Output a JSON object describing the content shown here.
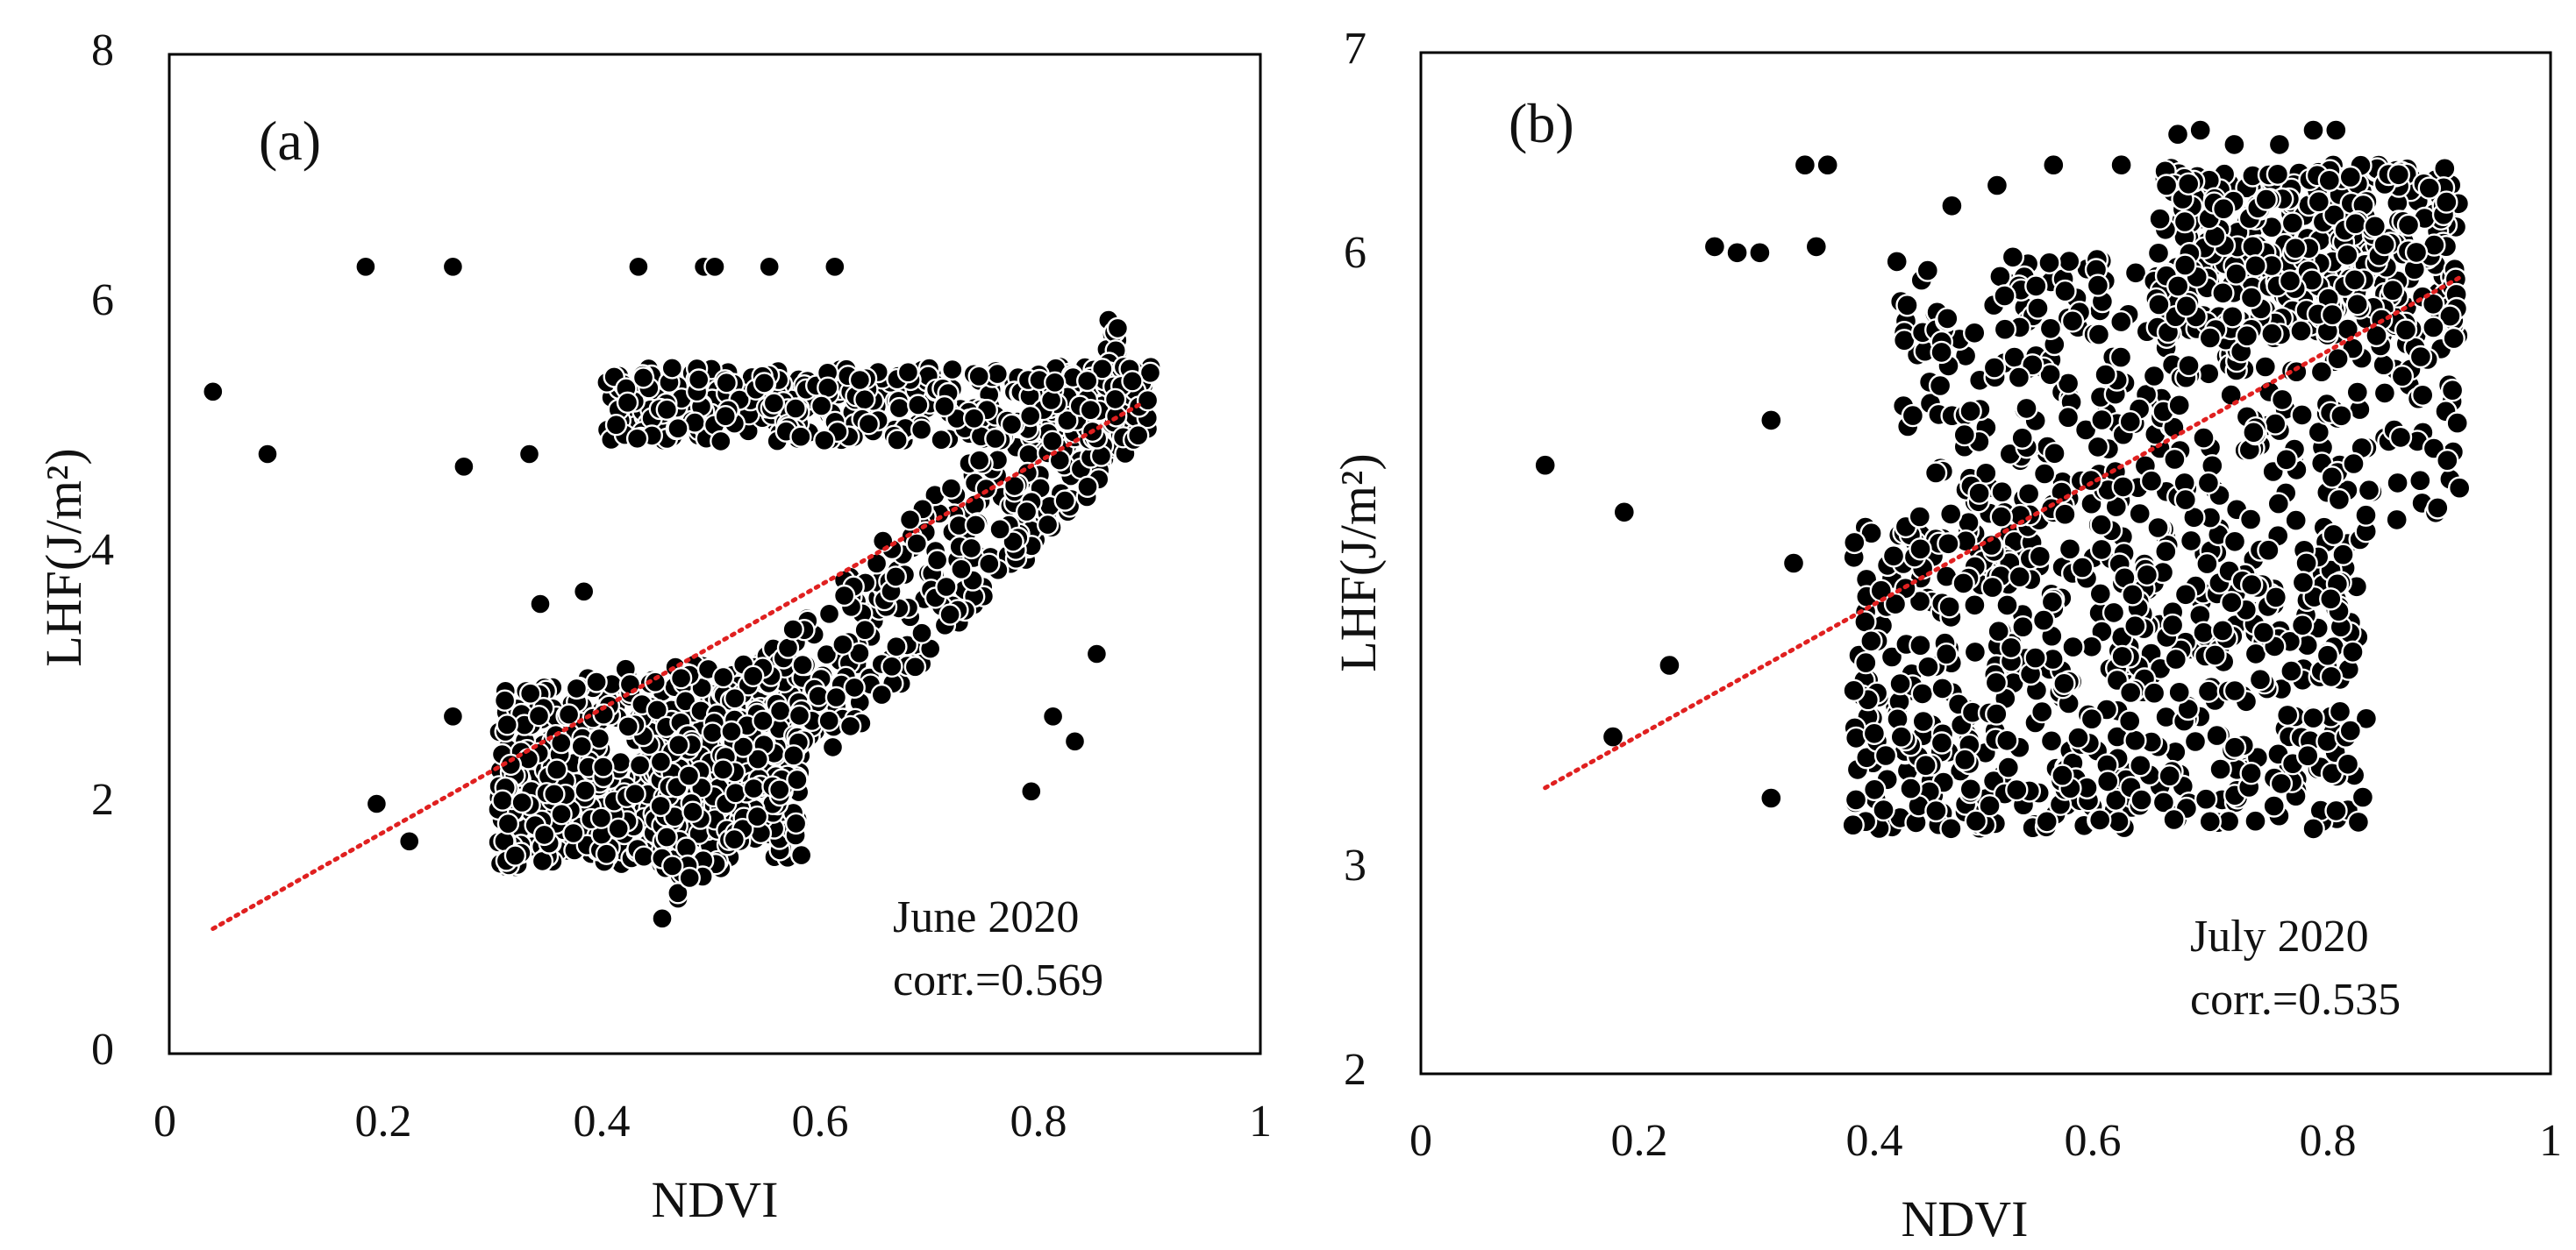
{
  "colors": {
    "point_fill": "#000000",
    "point_stroke": "#ffffff",
    "trend": "#e02020",
    "frame": "#000000"
  },
  "chart_data": [
    {
      "type": "scatter",
      "panel_label": "(a)",
      "xlabel": "NDVI",
      "ylabel": "LHF(J/m²)",
      "xlim": [
        0,
        1
      ],
      "ylim": [
        0,
        8
      ],
      "xticks": [
        "0",
        "0.2",
        "0.4",
        "0.6",
        "0.8",
        "1"
      ],
      "yticks": [
        "0",
        "2",
        "4",
        "6",
        "8"
      ],
      "annotation": [
        "June 2020",
        "corr.=0.569"
      ],
      "trendline": {
        "x": [
          0.04,
          0.89
        ],
        "y": [
          1.0,
          5.2
        ],
        "style": "dotted"
      },
      "outliers": [
        [
          0.04,
          5.3
        ],
        [
          0.09,
          4.8
        ],
        [
          0.18,
          6.3
        ],
        [
          0.26,
          6.3
        ],
        [
          0.43,
          6.3
        ],
        [
          0.49,
          6.3
        ],
        [
          0.5,
          6.3
        ],
        [
          0.55,
          6.3
        ],
        [
          0.61,
          6.3
        ],
        [
          0.19,
          2.0
        ],
        [
          0.22,
          1.7
        ],
        [
          0.26,
          2.7
        ],
        [
          0.27,
          4.7
        ],
        [
          0.33,
          4.8
        ],
        [
          0.34,
          3.6
        ],
        [
          0.38,
          3.7
        ],
        [
          0.79,
          2.1
        ],
        [
          0.81,
          2.7
        ],
        [
          0.83,
          2.5
        ],
        [
          0.85,
          3.2
        ]
      ],
      "cluster_generator": {
        "count": 1500,
        "seed": 17,
        "regions": [
          {
            "weight": 0.42,
            "x": [
              0.3,
              0.58
            ],
            "y_base": [
              1.45,
              2.9
            ],
            "y_slope": 1.6
          },
          {
            "weight": 0.3,
            "x": [
              0.45,
              0.88
            ],
            "y_lin": [
              1.7,
              5.4
            ],
            "spread": 1.3
          },
          {
            "weight": 0.28,
            "x": [
              0.4,
              0.9
            ],
            "y_band": [
              4.9,
              5.5
            ]
          }
        ]
      }
    },
    {
      "type": "scatter",
      "panel_label": "(b)",
      "xlabel": "NDVI",
      "ylabel": "LHF(J/m²)",
      "xlim": [
        0,
        1
      ],
      "ylim": [
        2,
        7
      ],
      "xticks": [
        "0",
        "0.2",
        "0.4",
        "0.6",
        "0.8",
        "1"
      ],
      "yticks": [
        "2",
        "3",
        "6",
        "7"
      ],
      "annotation": [
        "July 2020",
        "corr.=0.535"
      ],
      "trendline": {
        "x": [
          0.11,
          0.92
        ],
        "y": [
          3.4,
          5.9
        ],
        "style": "dotted"
      },
      "outliers": [
        [
          0.11,
          4.98
        ],
        [
          0.18,
          4.75
        ],
        [
          0.22,
          4.0
        ],
        [
          0.17,
          3.65
        ],
        [
          0.26,
          6.05
        ],
        [
          0.28,
          6.02
        ],
        [
          0.3,
          6.02
        ],
        [
          0.34,
          6.45
        ],
        [
          0.36,
          6.45
        ],
        [
          0.35,
          6.05
        ],
        [
          0.31,
          5.2
        ],
        [
          0.33,
          4.5
        ],
        [
          0.31,
          3.35
        ],
        [
          0.51,
          6.35
        ],
        [
          0.56,
          6.45
        ],
        [
          0.62,
          6.45
        ],
        [
          0.66,
          6.35
        ],
        [
          0.67,
          6.6
        ],
        [
          0.69,
          6.62
        ],
        [
          0.72,
          6.55
        ],
        [
          0.76,
          6.55
        ],
        [
          0.79,
          6.62
        ],
        [
          0.81,
          6.62
        ],
        [
          0.42,
          4.3
        ],
        [
          0.47,
          6.25
        ]
      ],
      "cluster_generator": {
        "count": 1300,
        "seed": 29,
        "regions": [
          {
            "weight": 0.45,
            "x": [
              0.38,
              0.84
            ],
            "y": [
              3.2,
              4.7
            ]
          },
          {
            "weight": 0.3,
            "x": [
              0.42,
              0.92
            ],
            "y": [
              4.7,
              6.0
            ]
          },
          {
            "weight": 0.25,
            "x": [
              0.65,
              0.92
            ],
            "y": [
              5.6,
              6.45
            ]
          }
        ]
      }
    }
  ]
}
